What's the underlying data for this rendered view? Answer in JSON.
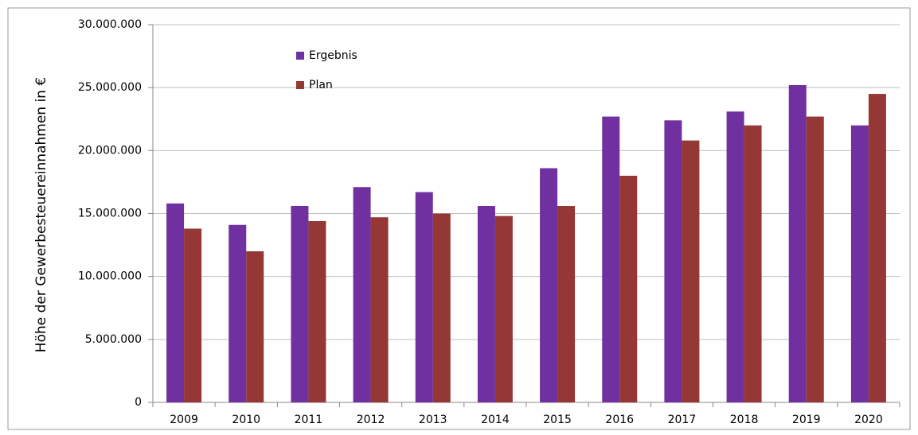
{
  "chart_data": {
    "type": "bar",
    "y_label": "Höhe der Gewerbesteuereinnahmen in €",
    "categories": [
      "2009",
      "2010",
      "2011",
      "2012",
      "2013",
      "2014",
      "2015",
      "2016",
      "2017",
      "2018",
      "2019",
      "2020"
    ],
    "series": [
      {
        "name": "Ergebnis",
        "color": "#7030a0",
        "values": [
          15800000,
          14100000,
          15600000,
          17100000,
          16700000,
          15600000,
          18600000,
          22700000,
          22400000,
          23100000,
          25200000,
          22000000
        ]
      },
      {
        "name": "Plan",
        "color": "#953735",
        "values": [
          13800000,
          12000000,
          14400000,
          14700000,
          15000000,
          14800000,
          15600000,
          18000000,
          20800000,
          22000000,
          22700000,
          24500000
        ]
      }
    ],
    "ylim": [
      0,
      30000000
    ],
    "yticks": [
      0,
      {
        "value": 5000000,
        "label": "5.000.000"
      },
      {
        "value": 10000000,
        "label": "10.000.000"
      },
      {
        "value": 15000000,
        "label": "15.000.000"
      },
      {
        "value": 20000000,
        "label": "20.000.000"
      },
      {
        "value": 25000000,
        "label": "25.000.000"
      },
      {
        "value": 30000000,
        "label": "30.000.000"
      }
    ],
    "grid": true,
    "legend": "top-left"
  }
}
